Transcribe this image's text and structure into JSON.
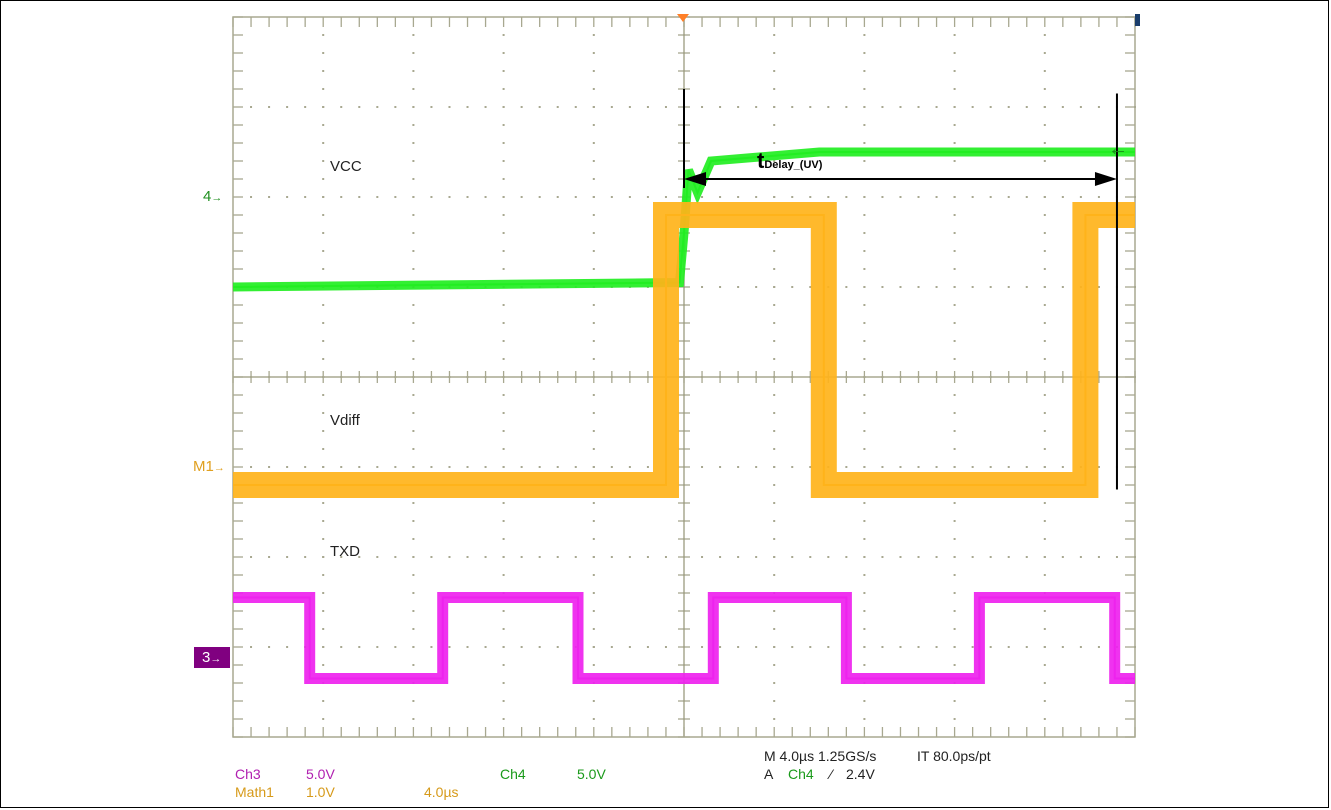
{
  "chart_data": {
    "type": "line",
    "title": "",
    "grid": true,
    "x_divisions": 10,
    "y_divisions": 8,
    "time_per_div_us": 4.0,
    "colors": {
      "ch4": "#22ee22",
      "math1": "#ffb31a",
      "ch3": "#ee22ee",
      "marker_ch3_bg": "#800080",
      "grid": "#a8a890",
      "trigger": "#ff7f27"
    },
    "series": [
      {
        "name": "VCC",
        "channel_marker": "4",
        "marker_arrow": "→",
        "description_points_div": [
          [
            0,
            5.0
          ],
          [
            4.95,
            5.05
          ],
          [
            5.0,
            5.6
          ],
          [
            5.05,
            6.3
          ],
          [
            5.15,
            6.05
          ],
          [
            5.3,
            6.4
          ],
          [
            6.5,
            6.5
          ],
          [
            10.0,
            6.5
          ]
        ]
      },
      {
        "name": "Vdiff",
        "channel_marker": "M1",
        "marker_arrow": "→",
        "description_points_div": [
          [
            0,
            2.8
          ],
          [
            4.8,
            2.8
          ],
          [
            4.8,
            5.8
          ],
          [
            6.55,
            5.8
          ],
          [
            6.55,
            2.8
          ],
          [
            9.45,
            2.8
          ],
          [
            9.45,
            5.8
          ],
          [
            10.0,
            5.8
          ]
        ]
      },
      {
        "name": "TXD",
        "channel_marker": "3",
        "marker_arrow": "→",
        "description_points_div": [
          [
            0,
            1.55
          ],
          [
            1.7,
            1.55
          ],
          [
            1.7,
            0.65
          ],
          [
            4.65,
            0.65
          ],
          [
            4.65,
            1.55
          ],
          [
            7.65,
            1.55
          ],
          [
            7.65,
            0.65
          ],
          [
            10.65,
            0.65
          ],
          [
            10.65,
            1.55
          ],
          [
            13.6,
            1.55
          ],
          [
            13.6,
            0.65
          ],
          [
            16.55,
            0.65
          ],
          [
            16.55,
            1.55
          ],
          [
            19.55,
            1.55
          ],
          [
            19.55,
            0.65
          ],
          [
            20.0,
            0.65
          ]
        ]
      }
    ],
    "annotation": {
      "main": "t",
      "sub": "Delay_(UV)",
      "from_div": 5.0,
      "to_div": 9.8
    },
    "statusbar": {
      "ch3_label": "Ch3",
      "ch3_scale": "5.0V",
      "math1_label": "Math1",
      "math1_scale": "1.0V",
      "math1_time": "4.0µs",
      "ch4_label": "Ch4",
      "ch4_scale": "5.0V",
      "horizontal": "M 4.0µs 1.25GS/s",
      "interp": "IT 80.0ps/pt",
      "trigger_prefix": "A",
      "trigger_source": "Ch4",
      "trigger_slope": "⁄",
      "trigger_level": "2.4V"
    },
    "right_arrow": "←"
  }
}
